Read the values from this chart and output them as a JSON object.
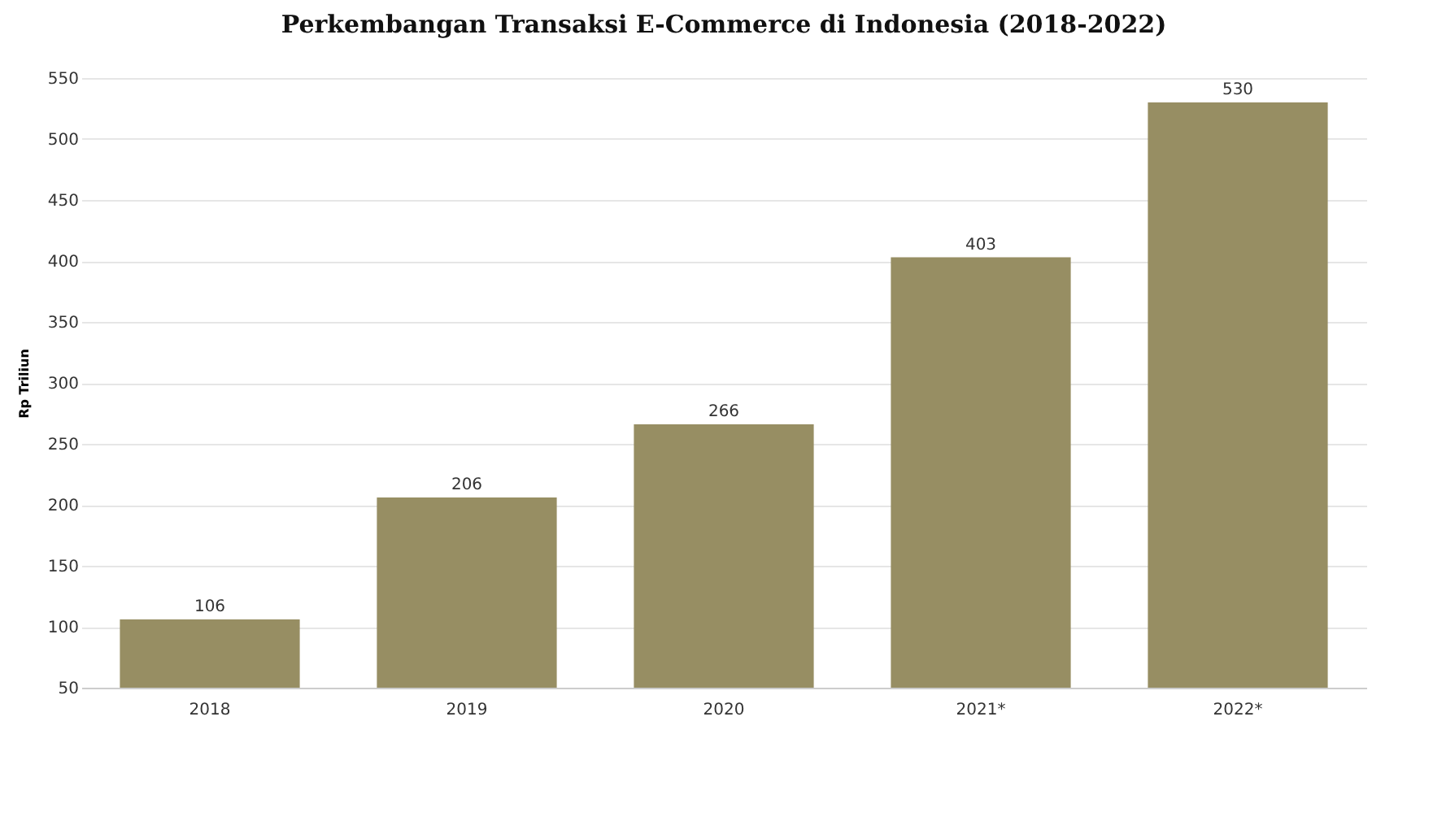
{
  "chart_data": {
    "type": "bar",
    "title": "Perkembangan Transaksi E-Commerce di Indonesia (2018-2022)",
    "ylabel": "Rp Triliun",
    "categories": [
      "2018",
      "2019",
      "2020",
      "2021*",
      "2022*"
    ],
    "values": [
      106,
      206,
      266,
      403,
      530
    ],
    "color": "#978e63",
    "ylim": [
      50,
      550
    ],
    "yticks": [
      50,
      100,
      150,
      200,
      250,
      300,
      350,
      400,
      450,
      500,
      550
    ],
    "grid": "y",
    "data_labels": true
  }
}
